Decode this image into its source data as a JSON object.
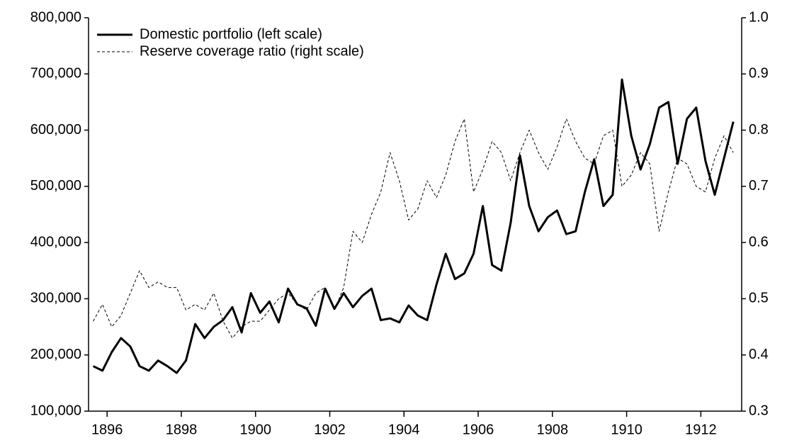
{
  "chart_data": {
    "type": "line",
    "x": [
      1895.625,
      1895.875,
      1896.125,
      1896.375,
      1896.625,
      1896.875,
      1897.125,
      1897.375,
      1897.625,
      1897.875,
      1898.125,
      1898.375,
      1898.625,
      1898.875,
      1899.125,
      1899.375,
      1899.625,
      1899.875,
      1900.125,
      1900.375,
      1900.625,
      1900.875,
      1901.125,
      1901.375,
      1901.625,
      1901.875,
      1902.125,
      1902.375,
      1902.625,
      1902.875,
      1903.125,
      1903.375,
      1903.625,
      1903.875,
      1904.125,
      1904.375,
      1904.625,
      1904.875,
      1905.125,
      1905.375,
      1905.625,
      1905.875,
      1906.125,
      1906.375,
      1906.625,
      1906.875,
      1907.125,
      1907.375,
      1907.625,
      1907.875,
      1908.125,
      1908.375,
      1908.625,
      1908.875,
      1909.125,
      1909.375,
      1909.625,
      1909.875,
      1910.125,
      1910.375,
      1910.625,
      1910.875,
      1911.125,
      1911.375,
      1911.625,
      1911.875,
      1912.125,
      1912.375,
      1912.625,
      1912.875
    ],
    "series": [
      {
        "name": "Domestic portfolio (left scale)",
        "color": "#000000",
        "dash": "solid",
        "axis": "y",
        "values": [
          180000,
          172000,
          205000,
          230000,
          215000,
          180000,
          172000,
          190000,
          180000,
          168000,
          190000,
          255000,
          230000,
          250000,
          262000,
          285000,
          240000,
          310000,
          275000,
          295000,
          258000,
          318000,
          290000,
          283000,
          252000,
          318000,
          282000,
          310000,
          285000,
          305000,
          318000,
          262000,
          265000,
          258000,
          288000,
          270000,
          262000,
          325000,
          380000,
          335000,
          345000,
          380000,
          465000,
          360000,
          350000,
          435000,
          555000,
          465000,
          420000,
          445000,
          457000,
          415000,
          420000,
          490000,
          548000,
          465000,
          485000,
          690000,
          590000,
          530000,
          575000,
          640000,
          650000,
          540000,
          620000,
          640000,
          545000,
          485000,
          550000,
          615000
        ]
      },
      {
        "name": "Reserve coverage ratio (right scale)",
        "color": "#000000",
        "dash": "dashed",
        "axis": "y2",
        "values": [
          0.46,
          0.49,
          0.45,
          0.47,
          0.51,
          0.55,
          0.52,
          0.53,
          0.52,
          0.52,
          0.48,
          0.49,
          0.48,
          0.51,
          0.46,
          0.43,
          0.45,
          0.46,
          0.46,
          0.48,
          0.5,
          0.51,
          0.49,
          0.48,
          0.51,
          0.52,
          0.48,
          0.52,
          0.62,
          0.6,
          0.65,
          0.69,
          0.76,
          0.71,
          0.64,
          0.66,
          0.71,
          0.68,
          0.72,
          0.78,
          0.82,
          0.69,
          0.73,
          0.78,
          0.76,
          0.71,
          0.76,
          0.8,
          0.76,
          0.73,
          0.77,
          0.82,
          0.78,
          0.75,
          0.74,
          0.79,
          0.8,
          0.7,
          0.72,
          0.76,
          0.74,
          0.62,
          0.69,
          0.75,
          0.74,
          0.7,
          0.69,
          0.75,
          0.79,
          0.76
        ]
      }
    ],
    "xlim": [
      1895.5,
      1913.1
    ],
    "xticks": [
      1896,
      1898,
      1900,
      1902,
      1904,
      1906,
      1908,
      1910,
      1912
    ],
    "ylim": [
      100000,
      800000
    ],
    "yticks": [
      {
        "value": 100000,
        "label": "100,000"
      },
      {
        "value": 200000,
        "label": "200,000"
      },
      {
        "value": 300000,
        "label": "300,000"
      },
      {
        "value": 400000,
        "label": "400,000"
      },
      {
        "value": 500000,
        "label": "500,000"
      },
      {
        "value": 600000,
        "label": "600,000"
      },
      {
        "value": 700000,
        "label": "700,000"
      },
      {
        "value": 800000,
        "label": "800,000"
      }
    ],
    "y2lim": [
      0.3,
      1.0
    ],
    "y2ticks": [
      0.3,
      0.4,
      0.5,
      0.6,
      0.7,
      0.8,
      0.9,
      {
        "value": 1,
        "label": "1.0"
      }
    ],
    "grid": false,
    "legend": "upper left"
  }
}
